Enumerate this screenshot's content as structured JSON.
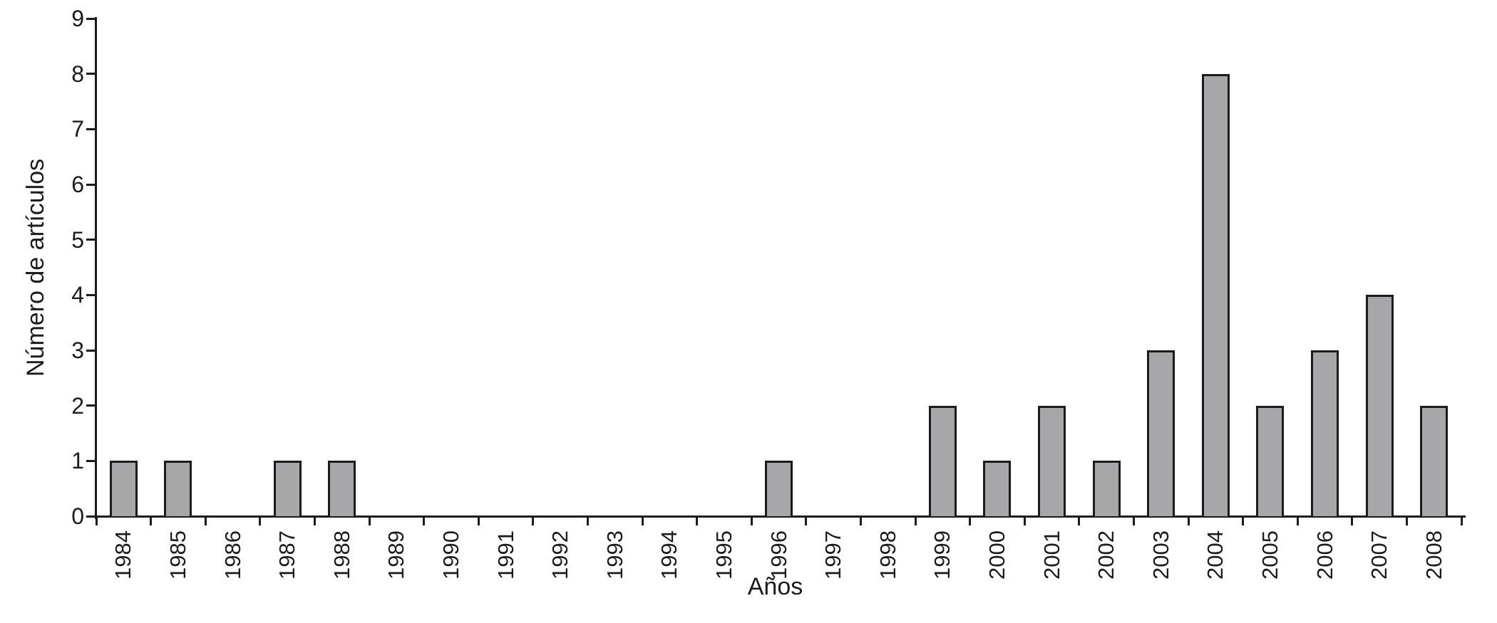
{
  "chart_data": {
    "type": "bar",
    "title": "",
    "xlabel": "Años",
    "ylabel": "Número de artículos",
    "categories": [
      "1984",
      "1985",
      "1986",
      "1987",
      "1988",
      "1989",
      "1990",
      "1991",
      "1992",
      "1993",
      "1994",
      "1995",
      "1996",
      "1997",
      "1998",
      "1999",
      "2000",
      "2001",
      "2002",
      "2003",
      "2004",
      "2005",
      "2006",
      "2007",
      "2008"
    ],
    "values": [
      1,
      1,
      0,
      1,
      1,
      0,
      0,
      0,
      0,
      0,
      0,
      0,
      1,
      0,
      0,
      2,
      1,
      2,
      1,
      3,
      8,
      2,
      3,
      4,
      2
    ],
    "ylim": [
      0,
      9
    ],
    "yticks": [
      0,
      1,
      2,
      3,
      4,
      5,
      6,
      7,
      8,
      9
    ],
    "grid": false,
    "legend": null,
    "bar_fill_color": "#a7a7aa",
    "bar_border_color": "#1c1c1c",
    "axis_color": "#1c1c1c"
  }
}
